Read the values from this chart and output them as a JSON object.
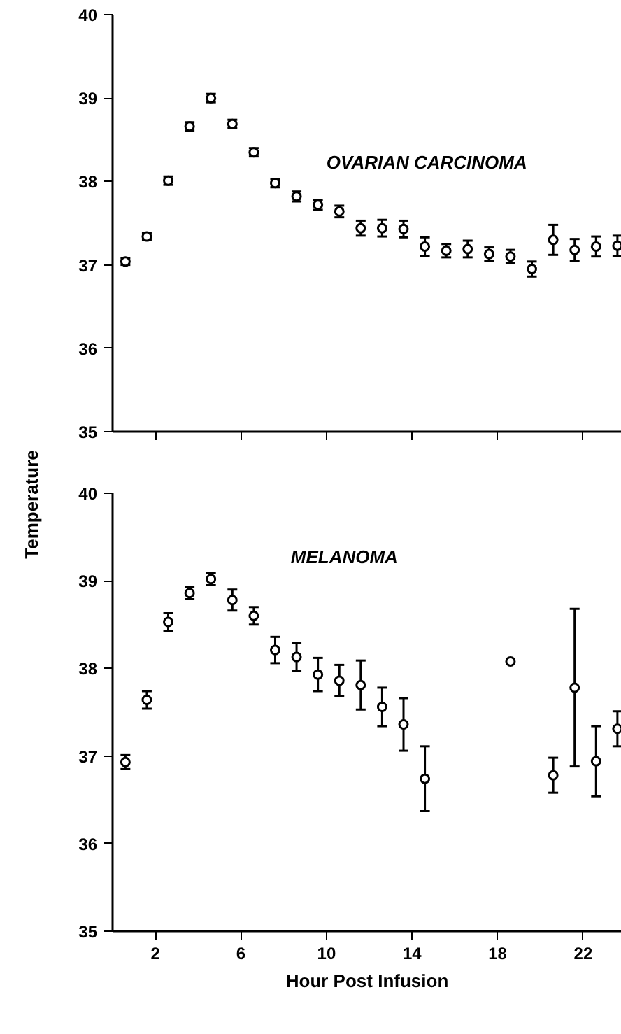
{
  "chart_data": [
    {
      "type": "scatter",
      "ylabel": "Temperature",
      "x": [
        0.6,
        1.6,
        2.6,
        3.6,
        4.6,
        5.6,
        6.6,
        7.6,
        8.6,
        9.6,
        10.6,
        11.6,
        12.6,
        13.6,
        14.6,
        15.6,
        16.6,
        17.6,
        18.6,
        19.6,
        20.6,
        21.6,
        22.6,
        23.6
      ],
      "series": [
        {
          "name": "OVARIAN CARCINOMA",
          "color": "#000000",
          "values": [
            37.04,
            37.34,
            38.01,
            38.66,
            39.0,
            38.69,
            38.35,
            37.98,
            37.82,
            37.72,
            37.64,
            37.44,
            37.44,
            37.43,
            37.22,
            37.17,
            37.19,
            37.13,
            37.1,
            36.95,
            37.3,
            37.18,
            37.22,
            37.23
          ],
          "errors": [
            0.04,
            0.04,
            0.05,
            0.05,
            0.05,
            0.05,
            0.05,
            0.05,
            0.06,
            0.06,
            0.07,
            0.09,
            0.1,
            0.1,
            0.11,
            0.08,
            0.1,
            0.08,
            0.08,
            0.09,
            0.18,
            0.13,
            0.12,
            0.12
          ]
        }
      ],
      "xlim": [
        0,
        23.8
      ],
      "xticks": [
        2,
        6,
        10,
        14,
        18,
        22
      ],
      "ylim": [
        35,
        40
      ],
      "yticks": [
        35,
        36,
        37,
        38,
        39,
        40
      ],
      "tick_labels": "y",
      "marker": "circle",
      "grid": false
    },
    {
      "type": "scatter",
      "xlabel": "Hour Post Infusion",
      "x": [
        0.6,
        1.6,
        2.6,
        3.6,
        4.6,
        5.6,
        6.6,
        7.6,
        8.6,
        9.6,
        10.6,
        11.6,
        12.6,
        13.6,
        14.6,
        15.6,
        16.6,
        17.6,
        18.6,
        19.6,
        20.6,
        21.6,
        22.6,
        23.6
      ],
      "series": [
        {
          "name": "MELANOMA",
          "color": "#000000",
          "values": [
            36.93,
            37.64,
            38.53,
            38.86,
            39.02,
            38.78,
            38.6,
            38.21,
            38.13,
            37.93,
            37.86,
            37.81,
            37.56,
            37.36,
            36.74,
            null,
            null,
            null,
            38.08,
            null,
            36.78,
            37.78,
            36.94,
            37.31
          ],
          "errors": [
            0.08,
            0.1,
            0.1,
            0.07,
            0.07,
            0.12,
            0.1,
            0.15,
            0.16,
            0.19,
            0.18,
            0.28,
            0.22,
            0.3,
            0.37,
            null,
            null,
            null,
            null,
            null,
            0.2,
            0.9,
            0.4,
            0.2
          ]
        }
      ],
      "xlim": [
        0,
        23.8
      ],
      "xticks": [
        2,
        6,
        10,
        14,
        18,
        22
      ],
      "ylim": [
        35,
        40
      ],
      "yticks": [
        35,
        36,
        37,
        38,
        39,
        40
      ],
      "marker": "circle",
      "grid": false
    }
  ]
}
